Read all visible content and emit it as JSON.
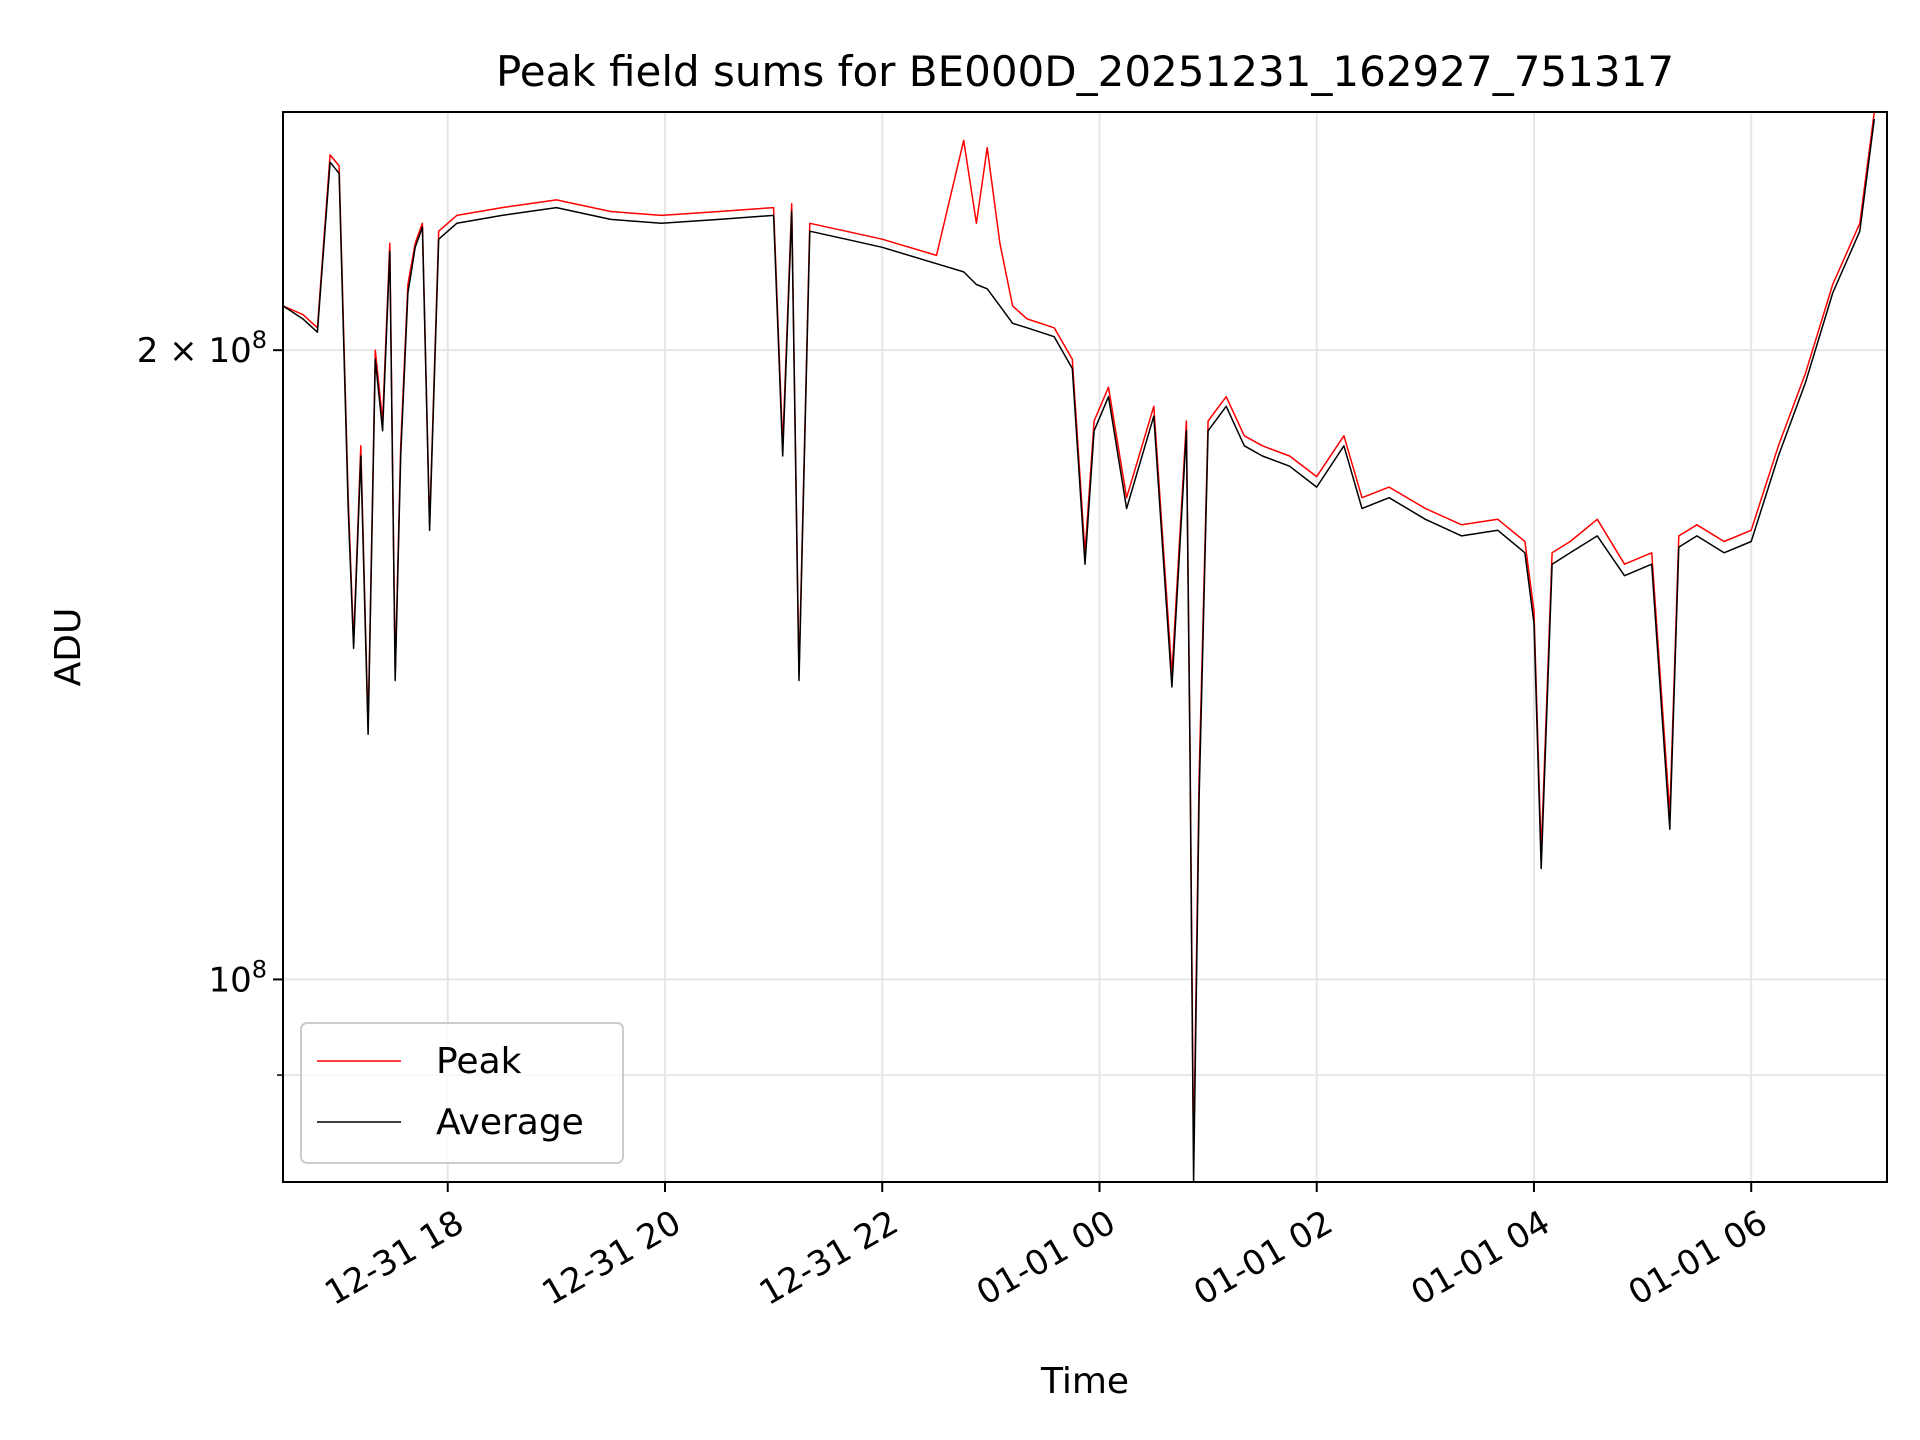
{
  "chart_data": {
    "type": "line",
    "title": "Peak field sums for BE000D_20251231_162927_751317",
    "xlabel": "Time",
    "ylabel": "ADU",
    "yscale": "log",
    "grid": true,
    "legend_position": "lower-left",
    "xlim": [
      "2025-12-31 16:29",
      "2026-01-01 07:15"
    ],
    "ylim": [
      80000000,
      260000000
    ],
    "x_ticks": [
      {
        "value": "2025-12-31 18:00",
        "label": "12-31 18"
      },
      {
        "value": "2025-12-31 20:00",
        "label": "12-31 20"
      },
      {
        "value": "2025-12-31 22:00",
        "label": "12-31 22"
      },
      {
        "value": "2026-01-01 00:00",
        "label": "01-01 00"
      },
      {
        "value": "2026-01-01 02:00",
        "label": "01-01 02"
      },
      {
        "value": "2026-01-01 04:00",
        "label": "01-01 04"
      },
      {
        "value": "2026-01-01 06:00",
        "label": "01-01 06"
      }
    ],
    "y_ticks": [
      {
        "value": 200000000,
        "label_base": "2 × 10",
        "label_exp": "8"
      },
      {
        "value": 100000000,
        "label_base": "10",
        "label_exp": "8"
      }
    ],
    "y_minor_ticks": [
      90000000
    ],
    "series": [
      {
        "name": "Peak",
        "color": "#ff0000",
        "x": [
          "2025-12-31 16:29",
          "2025-12-31 16:40",
          "2025-12-31 16:48",
          "2025-12-31 16:55",
          "2025-12-31 17:00",
          "2025-12-31 17:05",
          "2025-12-31 17:08",
          "2025-12-31 17:12",
          "2025-12-31 17:16",
          "2025-12-31 17:20",
          "2025-12-31 17:24",
          "2025-12-31 17:28",
          "2025-12-31 17:31",
          "2025-12-31 17:34",
          "2025-12-31 17:38",
          "2025-12-31 17:42",
          "2025-12-31 17:46",
          "2025-12-31 17:50",
          "2025-12-31 17:55",
          "2025-12-31 18:05",
          "2025-12-31 18:30",
          "2025-12-31 19:00",
          "2025-12-31 19:30",
          "2025-12-31 19:58",
          "2025-12-31 20:30",
          "2025-12-31 21:00",
          "2025-12-31 21:05",
          "2025-12-31 21:10",
          "2025-12-31 21:14",
          "2025-12-31 21:20",
          "2025-12-31 21:40",
          "2025-12-31 22:00",
          "2025-12-31 22:30",
          "2025-12-31 22:45",
          "2025-12-31 22:52",
          "2025-12-31 22:58",
          "2025-12-31 23:05",
          "2025-12-31 23:12",
          "2025-12-31 23:20",
          "2025-12-31 23:35",
          "2025-12-31 23:45",
          "2025-12-31 23:52",
          "2025-12-31 23:57",
          "2026-01-01 00:05",
          "2026-01-01 00:15",
          "2026-01-01 00:30",
          "2026-01-01 00:40",
          "2026-01-01 00:48",
          "2026-01-01 00:50",
          "2026-01-01 00:52",
          "2026-01-01 00:55",
          "2026-01-01 01:00",
          "2026-01-01 01:10",
          "2026-01-01 01:20",
          "2026-01-01 01:30",
          "2026-01-01 01:45",
          "2026-01-01 02:00",
          "2026-01-01 02:15",
          "2026-01-01 02:25",
          "2026-01-01 02:40",
          "2026-01-01 03:00",
          "2026-01-01 03:20",
          "2026-01-01 03:40",
          "2026-01-01 03:55",
          "2026-01-01 04:00",
          "2026-01-01 04:04",
          "2026-01-01 04:10",
          "2026-01-01 04:20",
          "2026-01-01 04:35",
          "2026-01-01 04:50",
          "2026-01-01 05:05",
          "2026-01-01 05:15",
          "2026-01-01 05:20",
          "2026-01-01 05:30",
          "2026-01-01 05:45",
          "2026-01-01 06:00",
          "2026-01-01 06:15",
          "2026-01-01 06:30",
          "2026-01-01 06:45",
          "2026-01-01 07:00",
          "2026-01-01 07:08"
        ],
        "y": [
          210000000,
          208000000,
          205000000,
          248000000,
          245000000,
          170000000,
          145000000,
          180000000,
          132000000,
          200000000,
          185000000,
          225000000,
          140000000,
          180000000,
          215000000,
          225000000,
          230000000,
          165000000,
          228000000,
          232000000,
          234000000,
          236000000,
          233000000,
          232000000,
          233000000,
          234000000,
          180000000,
          235000000,
          140000000,
          230000000,
          228000000,
          226000000,
          222000000,
          252000000,
          230000000,
          250000000,
          225000000,
          210000000,
          207000000,
          205000000,
          198000000,
          160000000,
          185000000,
          192000000,
          170000000,
          188000000,
          140000000,
          185000000,
          130000000,
          82000000,
          125000000,
          185000000,
          190000000,
          182000000,
          180000000,
          178000000,
          174000000,
          182000000,
          170000000,
          172000000,
          168000000,
          165000000,
          166000000,
          162000000,
          150000000,
          115000000,
          160000000,
          162000000,
          166000000,
          158000000,
          160000000,
          120000000,
          163000000,
          165000000,
          162000000,
          164000000,
          180000000,
          195000000,
          215000000,
          230000000,
          260000000
        ]
      },
      {
        "name": "Average",
        "color": "#000000",
        "x": [
          "2025-12-31 16:29",
          "2025-12-31 16:40",
          "2025-12-31 16:48",
          "2025-12-31 16:55",
          "2025-12-31 17:00",
          "2025-12-31 17:05",
          "2025-12-31 17:08",
          "2025-12-31 17:12",
          "2025-12-31 17:16",
          "2025-12-31 17:20",
          "2025-12-31 17:24",
          "2025-12-31 17:28",
          "2025-12-31 17:31",
          "2025-12-31 17:34",
          "2025-12-31 17:38",
          "2025-12-31 17:42",
          "2025-12-31 17:46",
          "2025-12-31 17:50",
          "2025-12-31 17:55",
          "2025-12-31 18:05",
          "2025-12-31 18:30",
          "2025-12-31 19:00",
          "2025-12-31 19:30",
          "2025-12-31 19:58",
          "2025-12-31 20:30",
          "2025-12-31 21:00",
          "2025-12-31 21:05",
          "2025-12-31 21:10",
          "2025-12-31 21:14",
          "2025-12-31 21:20",
          "2025-12-31 21:40",
          "2025-12-31 22:00",
          "2025-12-31 22:30",
          "2025-12-31 22:45",
          "2025-12-31 22:52",
          "2025-12-31 22:58",
          "2025-12-31 23:05",
          "2025-12-31 23:12",
          "2025-12-31 23:20",
          "2025-12-31 23:35",
          "2025-12-31 23:45",
          "2025-12-31 23:52",
          "2025-12-31 23:57",
          "2026-01-01 00:05",
          "2026-01-01 00:15",
          "2026-01-01 00:30",
          "2026-01-01 00:40",
          "2026-01-01 00:48",
          "2026-01-01 00:50",
          "2026-01-01 00:52",
          "2026-01-01 00:55",
          "2026-01-01 01:00",
          "2026-01-01 01:10",
          "2026-01-01 01:20",
          "2026-01-01 01:30",
          "2026-01-01 01:45",
          "2026-01-01 02:00",
          "2026-01-01 02:15",
          "2026-01-01 02:25",
          "2026-01-01 02:40",
          "2026-01-01 03:00",
          "2026-01-01 03:20",
          "2026-01-01 03:40",
          "2026-01-01 03:55",
          "2026-01-01 04:00",
          "2026-01-01 04:04",
          "2026-01-01 04:10",
          "2026-01-01 04:20",
          "2026-01-01 04:35",
          "2026-01-01 04:50",
          "2026-01-01 05:05",
          "2026-01-01 05:15",
          "2026-01-01 05:20",
          "2026-01-01 05:30",
          "2026-01-01 05:45",
          "2026-01-01 06:00",
          "2026-01-01 06:15",
          "2026-01-01 06:30",
          "2026-01-01 06:45",
          "2026-01-01 07:00",
          "2026-01-01 07:08"
        ],
        "y": [
          210000000,
          207000000,
          204000000,
          246000000,
          243000000,
          168000000,
          144000000,
          178000000,
          131000000,
          198000000,
          183000000,
          223000000,
          139000000,
          178000000,
          213000000,
          224000000,
          229000000,
          164000000,
          226000000,
          230000000,
          232000000,
          234000000,
          231000000,
          230000000,
          231000000,
          232000000,
          178000000,
          233000000,
          139000000,
          228000000,
          226000000,
          224000000,
          220000000,
          218000000,
          215000000,
          214000000,
          210000000,
          206000000,
          205000000,
          203000000,
          196000000,
          158000000,
          183000000,
          190000000,
          168000000,
          186000000,
          138000000,
          183000000,
          128000000,
          80000000,
          122000000,
          183000000,
          188000000,
          180000000,
          178000000,
          176000000,
          172000000,
          180000000,
          168000000,
          170000000,
          166000000,
          163000000,
          164000000,
          160000000,
          148000000,
          113000000,
          158000000,
          160000000,
          163000000,
          156000000,
          158000000,
          118000000,
          161000000,
          163000000,
          160000000,
          162000000,
          178000000,
          193000000,
          213000000,
          228000000,
          258000000
        ]
      }
    ]
  }
}
